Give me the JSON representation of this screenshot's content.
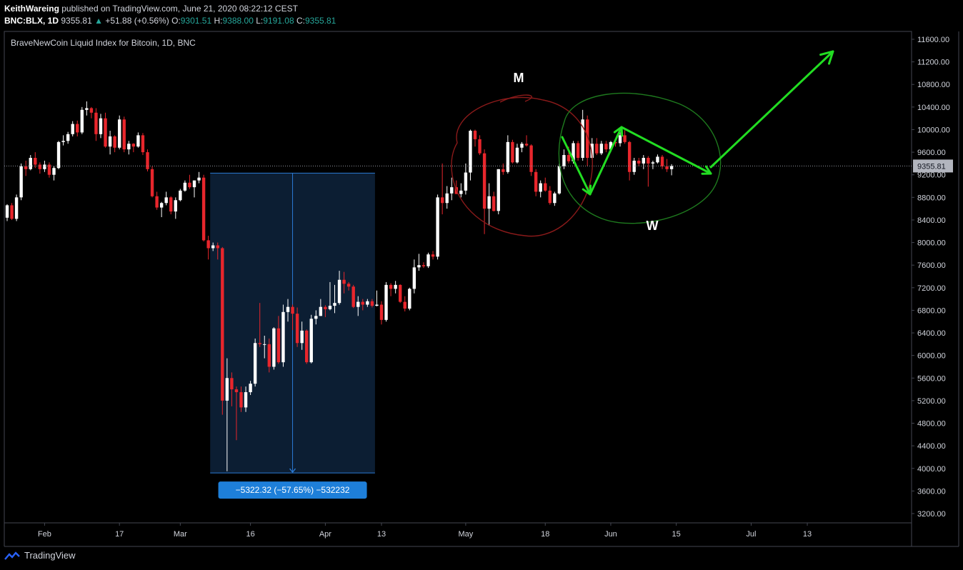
{
  "header": {
    "author": "KeithWareing",
    "published_text": "published on TradingView.com, June 21, 2020 08:22:12 CEST",
    "symbol": "BNC:BLX, 1D",
    "last": "9355.81",
    "change": "+51.88 (+0.56%)",
    "o_label": "O:",
    "o_value": "9301.51",
    "h_label": "H:",
    "h_value": "9388.00",
    "l_label": "L:",
    "l_value": "9191.08",
    "c_label": "C:",
    "c_value": "9355.81"
  },
  "footer": {
    "brand": "TradingView"
  },
  "colors": {
    "up": "#ffffff",
    "down": "#e8262c",
    "m_circle": "#8b1a1a",
    "w_circle": "#1e7a1e",
    "arrow": "#22dd22",
    "measure_bg": "#0c1e33",
    "measure_line": "#2b7bd6",
    "label_bg": "#1e7fd9"
  },
  "chart_data": {
    "type": "candlestick",
    "title": "BraveNewCoin Liquid Index for Bitcoin, 1D, BNC",
    "ylim": [
      3000,
      11900
    ],
    "y_ticks": [
      "11600.00",
      "11200.00",
      "10800.00",
      "10400.00",
      "10000.00",
      "9600.00",
      "9200.00",
      "8800.00",
      "8400.00",
      "8000.00",
      "7600.00",
      "7200.00",
      "6800.00",
      "6400.00",
      "6000.00",
      "5600.00",
      "5200.00",
      "4800.00",
      "4400.00",
      "4000.00",
      "3600.00",
      "3200.00"
    ],
    "x_ticks": [
      "Feb",
      "17",
      "Mar",
      "16",
      "Apr",
      "13",
      "May",
      "18",
      "Jun",
      "15",
      "Jul",
      "13"
    ],
    "last_price_label": "9355.81",
    "last_price": 9355.81,
    "start_date": "2020-01-24",
    "ohlc": [
      [
        8440,
        8680,
        8380,
        8660
      ],
      [
        8660,
        8700,
        8400,
        8420
      ],
      [
        8420,
        8850,
        8380,
        8800
      ],
      [
        8800,
        9400,
        8750,
        9350
      ],
      [
        9350,
        9450,
        9180,
        9300
      ],
      [
        9300,
        9550,
        9280,
        9500
      ],
      [
        9500,
        9600,
        9320,
        9380
      ],
      [
        9380,
        9420,
        9220,
        9300
      ],
      [
        9300,
        9450,
        9250,
        9380
      ],
      [
        9380,
        9420,
        9150,
        9200
      ],
      [
        9200,
        9350,
        9100,
        9320
      ],
      [
        9320,
        9800,
        9300,
        9780
      ],
      [
        9780,
        9900,
        9720,
        9800
      ],
      [
        9800,
        9960,
        9750,
        9920
      ],
      [
        9920,
        10150,
        9880,
        10100
      ],
      [
        10100,
        10160,
        9880,
        9950
      ],
      [
        9950,
        10400,
        9920,
        10350
      ],
      [
        10350,
        10500,
        10250,
        10380
      ],
      [
        10380,
        10400,
        10200,
        10300
      ],
      [
        10300,
        10380,
        9800,
        9920
      ],
      [
        9920,
        10280,
        9850,
        10200
      ],
      [
        10200,
        10300,
        9680,
        9700
      ],
      [
        9700,
        9980,
        9560,
        9880
      ],
      [
        9880,
        9900,
        9600,
        9680
      ],
      [
        9680,
        10250,
        9650,
        10180
      ],
      [
        10180,
        10230,
        9600,
        9650
      ],
      [
        9650,
        9800,
        9560,
        9750
      ],
      [
        9750,
        9760,
        9600,
        9700
      ],
      [
        9700,
        9950,
        9680,
        9900
      ],
      [
        9900,
        9940,
        9550,
        9600
      ],
      [
        9600,
        9650,
        9260,
        9300
      ],
      [
        9300,
        9350,
        8800,
        8820
      ],
      [
        8820,
        8900,
        8580,
        8620
      ],
      [
        8620,
        8720,
        8450,
        8700
      ],
      [
        8700,
        8900,
        8660,
        8800
      ],
      [
        8800,
        8820,
        8500,
        8550
      ],
      [
        8550,
        8800,
        8420,
        8750
      ],
      [
        8750,
        8950,
        8730,
        8920
      ],
      [
        8920,
        9100,
        8900,
        9060
      ],
      [
        9060,
        9200,
        8950,
        8980
      ],
      [
        8980,
        9100,
        8800,
        9100
      ],
      [
        9100,
        9250,
        9050,
        9150
      ],
      [
        9150,
        9200,
        8020,
        8040
      ],
      [
        8040,
        8120,
        7700,
        7900
      ],
      [
        7900,
        8000,
        7850,
        7950
      ],
      [
        7950,
        8000,
        7700,
        7900
      ],
      [
        7900,
        7920,
        4950,
        5200
      ],
      [
        5200,
        5950,
        3950,
        5600
      ],
      [
        5600,
        5700,
        5100,
        5400
      ],
      [
        5400,
        5450,
        4500,
        5350
      ],
      [
        5350,
        5450,
        5000,
        5080
      ],
      [
        5080,
        5450,
        5000,
        5350
      ],
      [
        5350,
        5550,
        5300,
        5500
      ],
      [
        5500,
        6300,
        5450,
        6220
      ],
      [
        6220,
        6930,
        6150,
        6200
      ],
      [
        6200,
        6350,
        5950,
        6200
      ],
      [
        6200,
        6300,
        5700,
        5800
      ],
      [
        5800,
        6500,
        5750,
        6480
      ],
      [
        6480,
        6700,
        5850,
        5880
      ],
      [
        5880,
        6900,
        5800,
        6770
      ],
      [
        6770,
        7000,
        6600,
        6860
      ],
      [
        6860,
        6900,
        6450,
        6740
      ],
      [
        6740,
        6850,
        6150,
        6220
      ],
      [
        6220,
        6600,
        6100,
        6440
      ],
      [
        6440,
        6460,
        5850,
        5880
      ],
      [
        5880,
        6720,
        5860,
        6650
      ],
      [
        6650,
        6800,
        6550,
        6700
      ],
      [
        6700,
        7000,
        6700,
        6860
      ],
      [
        6860,
        6890,
        6680,
        6820
      ],
      [
        6820,
        7300,
        6800,
        6880
      ],
      [
        6880,
        7250,
        6750,
        6930
      ],
      [
        6930,
        7500,
        6900,
        7340
      ],
      [
        7340,
        7480,
        7100,
        7270
      ],
      [
        7270,
        7300,
        7150,
        7220
      ],
      [
        7220,
        7250,
        6840,
        6860
      ],
      [
        6860,
        7050,
        6700,
        6950
      ],
      [
        6950,
        7000,
        6800,
        6900
      ],
      [
        6900,
        7000,
        6860,
        6960
      ],
      [
        6960,
        7000,
        6850,
        6880
      ],
      [
        6880,
        7150,
        6870,
        6900
      ],
      [
        6900,
        6960,
        6550,
        6630
      ],
      [
        6630,
        7300,
        6600,
        7250
      ],
      [
        7250,
        7280,
        7050,
        7180
      ],
      [
        7180,
        7320,
        7100,
        7250
      ],
      [
        7250,
        7260,
        6930,
        6950
      ],
      [
        6950,
        7050,
        6780,
        6830
      ],
      [
        6830,
        7200,
        6800,
        7180
      ],
      [
        7180,
        7700,
        7100,
        7560
      ],
      [
        7560,
        7800,
        7500,
        7600
      ],
      [
        7600,
        7650,
        7550,
        7580
      ],
      [
        7580,
        7820,
        7550,
        7790
      ],
      [
        7790,
        7850,
        7700,
        7750
      ],
      [
        7750,
        8850,
        7700,
        8800
      ],
      [
        8800,
        9400,
        8500,
        8700
      ],
      [
        8700,
        9000,
        8600,
        8870
      ],
      [
        8870,
        9150,
        8750,
        8980
      ],
      [
        8980,
        9100,
        8860,
        8860
      ],
      [
        8860,
        9050,
        8800,
        8920
      ],
      [
        8920,
        9400,
        8850,
        9240
      ],
      [
        9240,
        10000,
        9100,
        9980
      ],
      [
        9980,
        10000,
        9700,
        9830
      ],
      [
        9830,
        9900,
        9550,
        9580
      ],
      [
        9580,
        9650,
        8150,
        8600
      ],
      [
        8600,
        9050,
        8300,
        8820
      ],
      [
        8820,
        8900,
        8550,
        8560
      ],
      [
        8560,
        9300,
        8500,
        9300
      ],
      [
        9300,
        9400,
        9200,
        9250
      ],
      [
        9250,
        9900,
        9220,
        9780
      ],
      [
        9780,
        9820,
        9400,
        9420
      ],
      [
        9420,
        9750,
        9400,
        9680
      ],
      [
        9680,
        9780,
        9600,
        9750
      ],
      [
        9750,
        9900,
        9700,
        9720
      ],
      [
        9720,
        9740,
        9180,
        9250
      ],
      [
        9250,
        9300,
        8820,
        8900
      ],
      [
        8900,
        9100,
        8800,
        9050
      ],
      [
        9050,
        9150,
        8900,
        8920
      ],
      [
        8920,
        9000,
        8670,
        8700
      ],
      [
        8700,
        8900,
        8650,
        8870
      ],
      [
        8870,
        9400,
        8850,
        9350
      ],
      [
        9350,
        9650,
        9300,
        9550
      ],
      [
        9550,
        9700,
        9400,
        9440
      ],
      [
        9440,
        9800,
        9400,
        9760
      ],
      [
        9760,
        9800,
        9450,
        9500
      ],
      [
        9500,
        10350,
        9450,
        10180
      ],
      [
        10180,
        10250,
        9350,
        9500
      ],
      [
        9500,
        9850,
        9480,
        9750
      ],
      [
        9750,
        9850,
        9550,
        9580
      ],
      [
        9580,
        9800,
        9550,
        9750
      ],
      [
        9750,
        9800,
        9600,
        9650
      ],
      [
        9650,
        9800,
        9600,
        9780
      ],
      [
        9780,
        9800,
        9700,
        9760
      ],
      [
        9760,
        9990,
        9700,
        9900
      ],
      [
        9900,
        9990,
        9750,
        9780
      ],
      [
        9780,
        9800,
        9100,
        9250
      ],
      [
        9250,
        9500,
        9200,
        9450
      ],
      [
        9450,
        9500,
        9350,
        9400
      ],
      [
        9400,
        9550,
        9300,
        9500
      ],
      [
        9500,
        9530,
        8990,
        9400
      ],
      [
        9400,
        9450,
        9300,
        9420
      ],
      [
        9420,
        9560,
        9400,
        9520
      ],
      [
        9520,
        9550,
        9300,
        9350
      ],
      [
        9350,
        9480,
        9250,
        9300
      ],
      [
        9300,
        9388,
        9191,
        9356
      ]
    ],
    "measure": {
      "from_price": 9230,
      "to_price": 3920,
      "label": "−5322.32 (−57.65%) −532232"
    },
    "annotations": {
      "m_label": "M",
      "w_label": "W"
    }
  }
}
